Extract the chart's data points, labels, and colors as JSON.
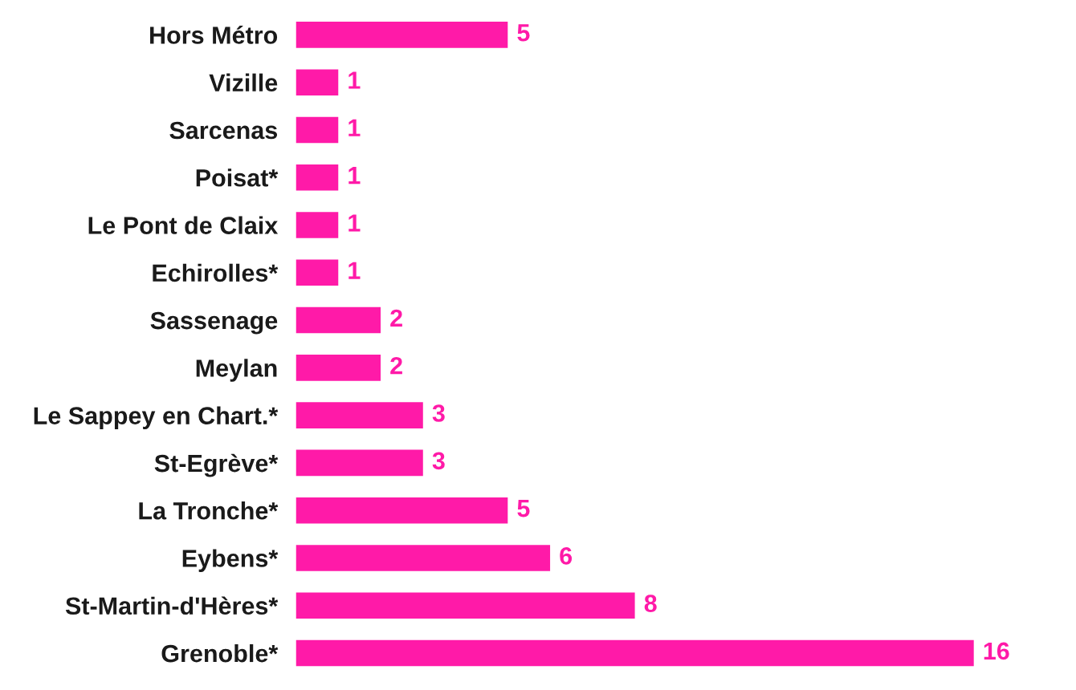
{
  "chart_data": {
    "type": "bar",
    "orientation": "horizontal",
    "categories": [
      "Hors Métro",
      "Vizille",
      "Sarcenas",
      "Poisat*",
      "Le Pont de Claix",
      "Echirolles*",
      "Sassenage",
      "Meylan",
      "Le Sappey en Chart.*",
      "St-Egrève*",
      "La Tronche*",
      "Eybens*",
      "St-Martin-d'Hères*",
      "Grenoble*"
    ],
    "values": [
      5,
      1,
      1,
      1,
      1,
      1,
      2,
      2,
      3,
      3,
      5,
      6,
      8,
      16
    ],
    "color": "#ff1aa8",
    "data_labels": true,
    "grid": false,
    "legend": false
  }
}
